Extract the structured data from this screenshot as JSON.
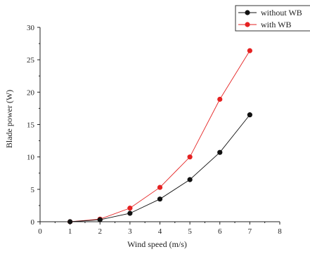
{
  "chart_data": {
    "type": "line",
    "title": "",
    "xlabel": "Wind speed (m/s)",
    "ylabel": "Blade power (W)",
    "xlim": [
      0,
      8
    ],
    "ylim": [
      0,
      30
    ],
    "x_ticks": [
      "0",
      "1",
      "2",
      "3",
      "4",
      "5",
      "6",
      "7",
      "8"
    ],
    "y_ticks": [
      "0",
      "5",
      "10",
      "15",
      "20",
      "25",
      "30"
    ],
    "grid": false,
    "legend_position": "top-right",
    "series": [
      {
        "name": "without WB",
        "color": "#111111",
        "x": [
          1,
          2,
          3,
          4,
          5,
          6,
          7
        ],
        "y": [
          0,
          0.3,
          1.3,
          3.5,
          6.5,
          10.7,
          16.5
        ]
      },
      {
        "name": "with WB",
        "color": "#e52222",
        "x": [
          1,
          2,
          3,
          4,
          5,
          6,
          7
        ],
        "y": [
          0,
          0.4,
          2.1,
          5.3,
          10.0,
          18.9,
          26.4
        ]
      }
    ]
  }
}
